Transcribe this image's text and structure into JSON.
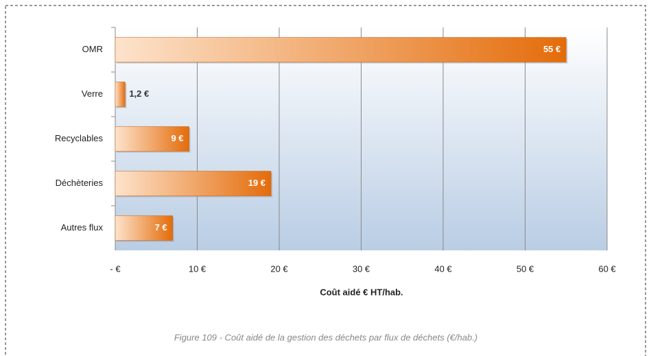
{
  "chart_data": {
    "type": "bar",
    "orientation": "horizontal",
    "categories": [
      "OMR",
      "Verre",
      "Recyclables",
      "Déchèteries",
      "Autres flux"
    ],
    "values": [
      55,
      1.2,
      9,
      19,
      7
    ],
    "value_labels": [
      "55 €",
      "1,2 €",
      "9 €",
      "19 €",
      "7 €"
    ],
    "color": "#e46c0a",
    "xlim": [
      0,
      60
    ],
    "xticks": [
      {
        "value": 0,
        "label": "- €"
      },
      {
        "value": 10,
        "label": "10 €"
      },
      {
        "value": 20,
        "label": "20 €"
      },
      {
        "value": 30,
        "label": "30 €"
      },
      {
        "value": 40,
        "label": "40 €"
      },
      {
        "value": 50,
        "label": "50 €"
      },
      {
        "value": 60,
        "label": "60 €"
      }
    ],
    "x_label": "Coût aidé € HT/hab.",
    "grid": true,
    "caption": "Figure 109 - Coût aidé de la gestion des déchets par flux de déchets (€/hab.)"
  }
}
